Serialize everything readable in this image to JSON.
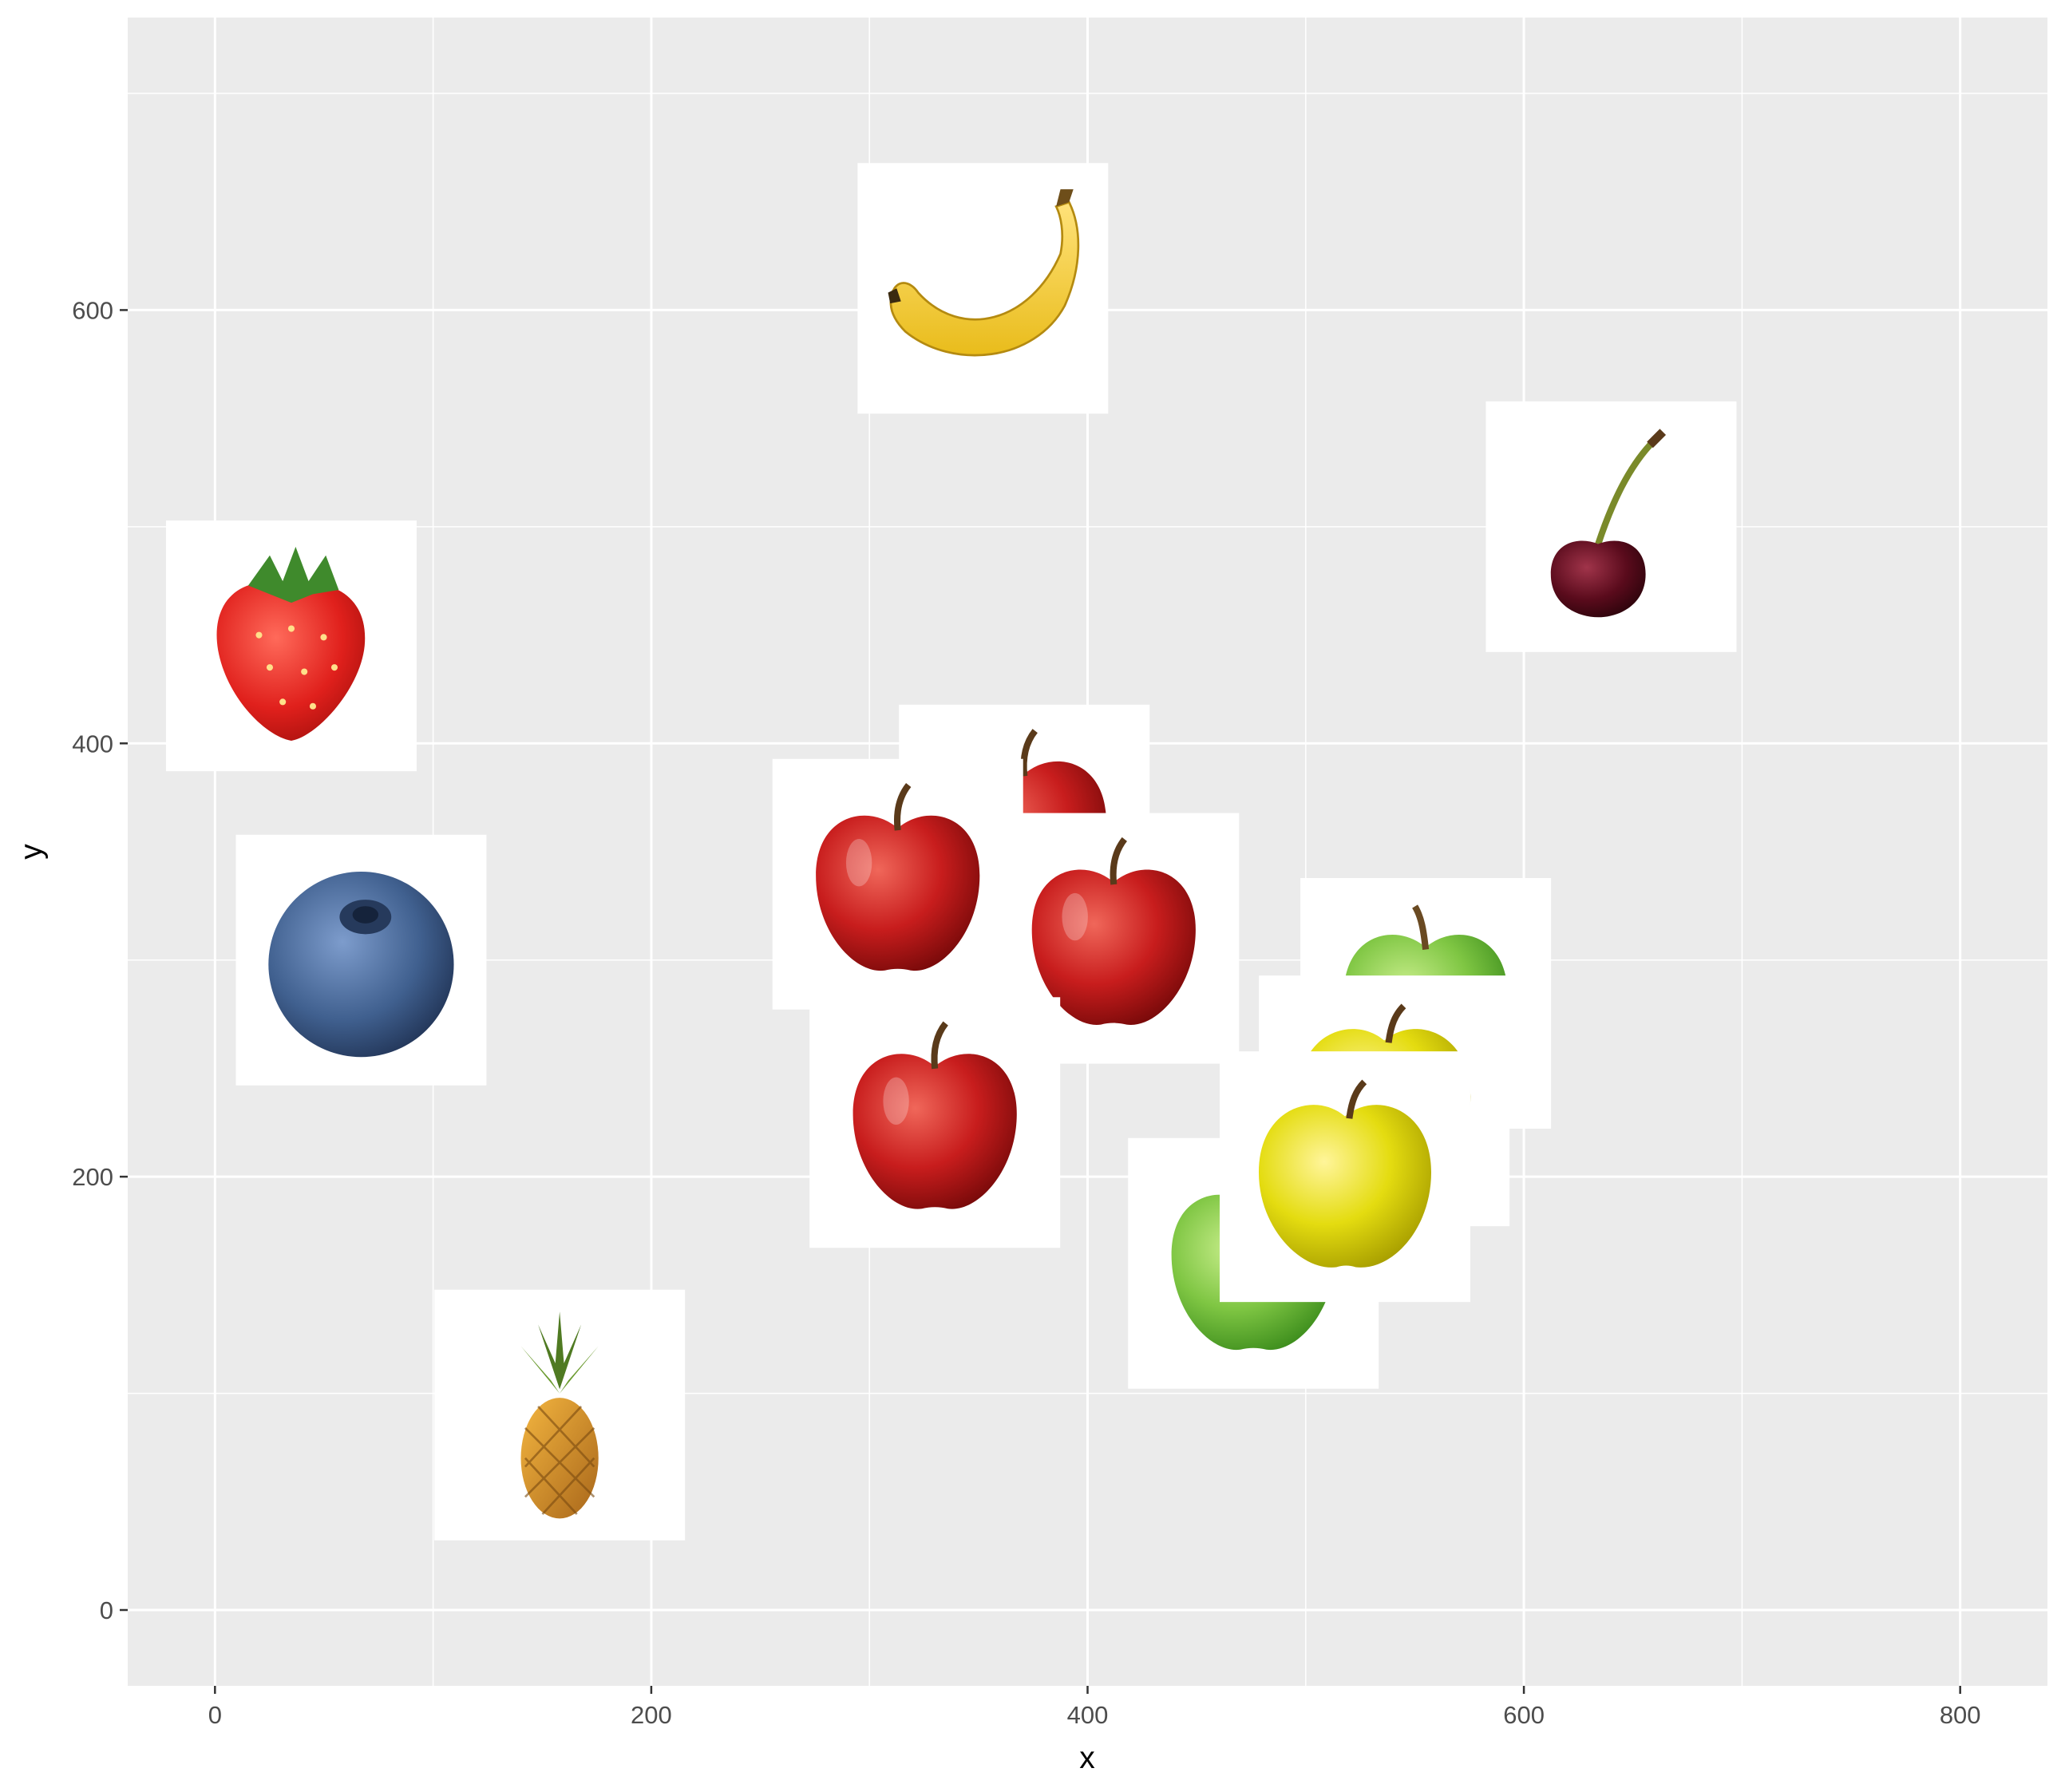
{
  "chart_data": {
    "type": "scatter",
    "marker": "fruit-image",
    "xlabel": "x",
    "ylabel": "y",
    "xlim": [
      -40,
      840
    ],
    "ylim": [
      -35,
      735
    ],
    "x_ticks": [
      0,
      200,
      400,
      600,
      800
    ],
    "y_ticks": [
      0,
      200,
      400,
      600
    ],
    "grid": true,
    "background": "#ebebeb",
    "grid_color": "#ffffff",
    "points": [
      {
        "fruit": "strawberry",
        "x": 35,
        "y": 445
      },
      {
        "fruit": "blueberry",
        "x": 67,
        "y": 300
      },
      {
        "fruit": "pineapple",
        "x": 158,
        "y": 90
      },
      {
        "fruit": "banana",
        "x": 352,
        "y": 610
      },
      {
        "fruit": "red-apple",
        "x": 371,
        "y": 360
      },
      {
        "fruit": "red-apple",
        "x": 313,
        "y": 335
      },
      {
        "fruit": "red-apple",
        "x": 412,
        "y": 310
      },
      {
        "fruit": "red-apple",
        "x": 330,
        "y": 225
      },
      {
        "fruit": "green-apple",
        "x": 555,
        "y": 280
      },
      {
        "fruit": "yellow-apple",
        "x": 536,
        "y": 235
      },
      {
        "fruit": "green-apple",
        "x": 476,
        "y": 160
      },
      {
        "fruit": "yellow-apple",
        "x": 518,
        "y": 200
      },
      {
        "fruit": "cherry",
        "x": 640,
        "y": 500
      }
    ]
  }
}
